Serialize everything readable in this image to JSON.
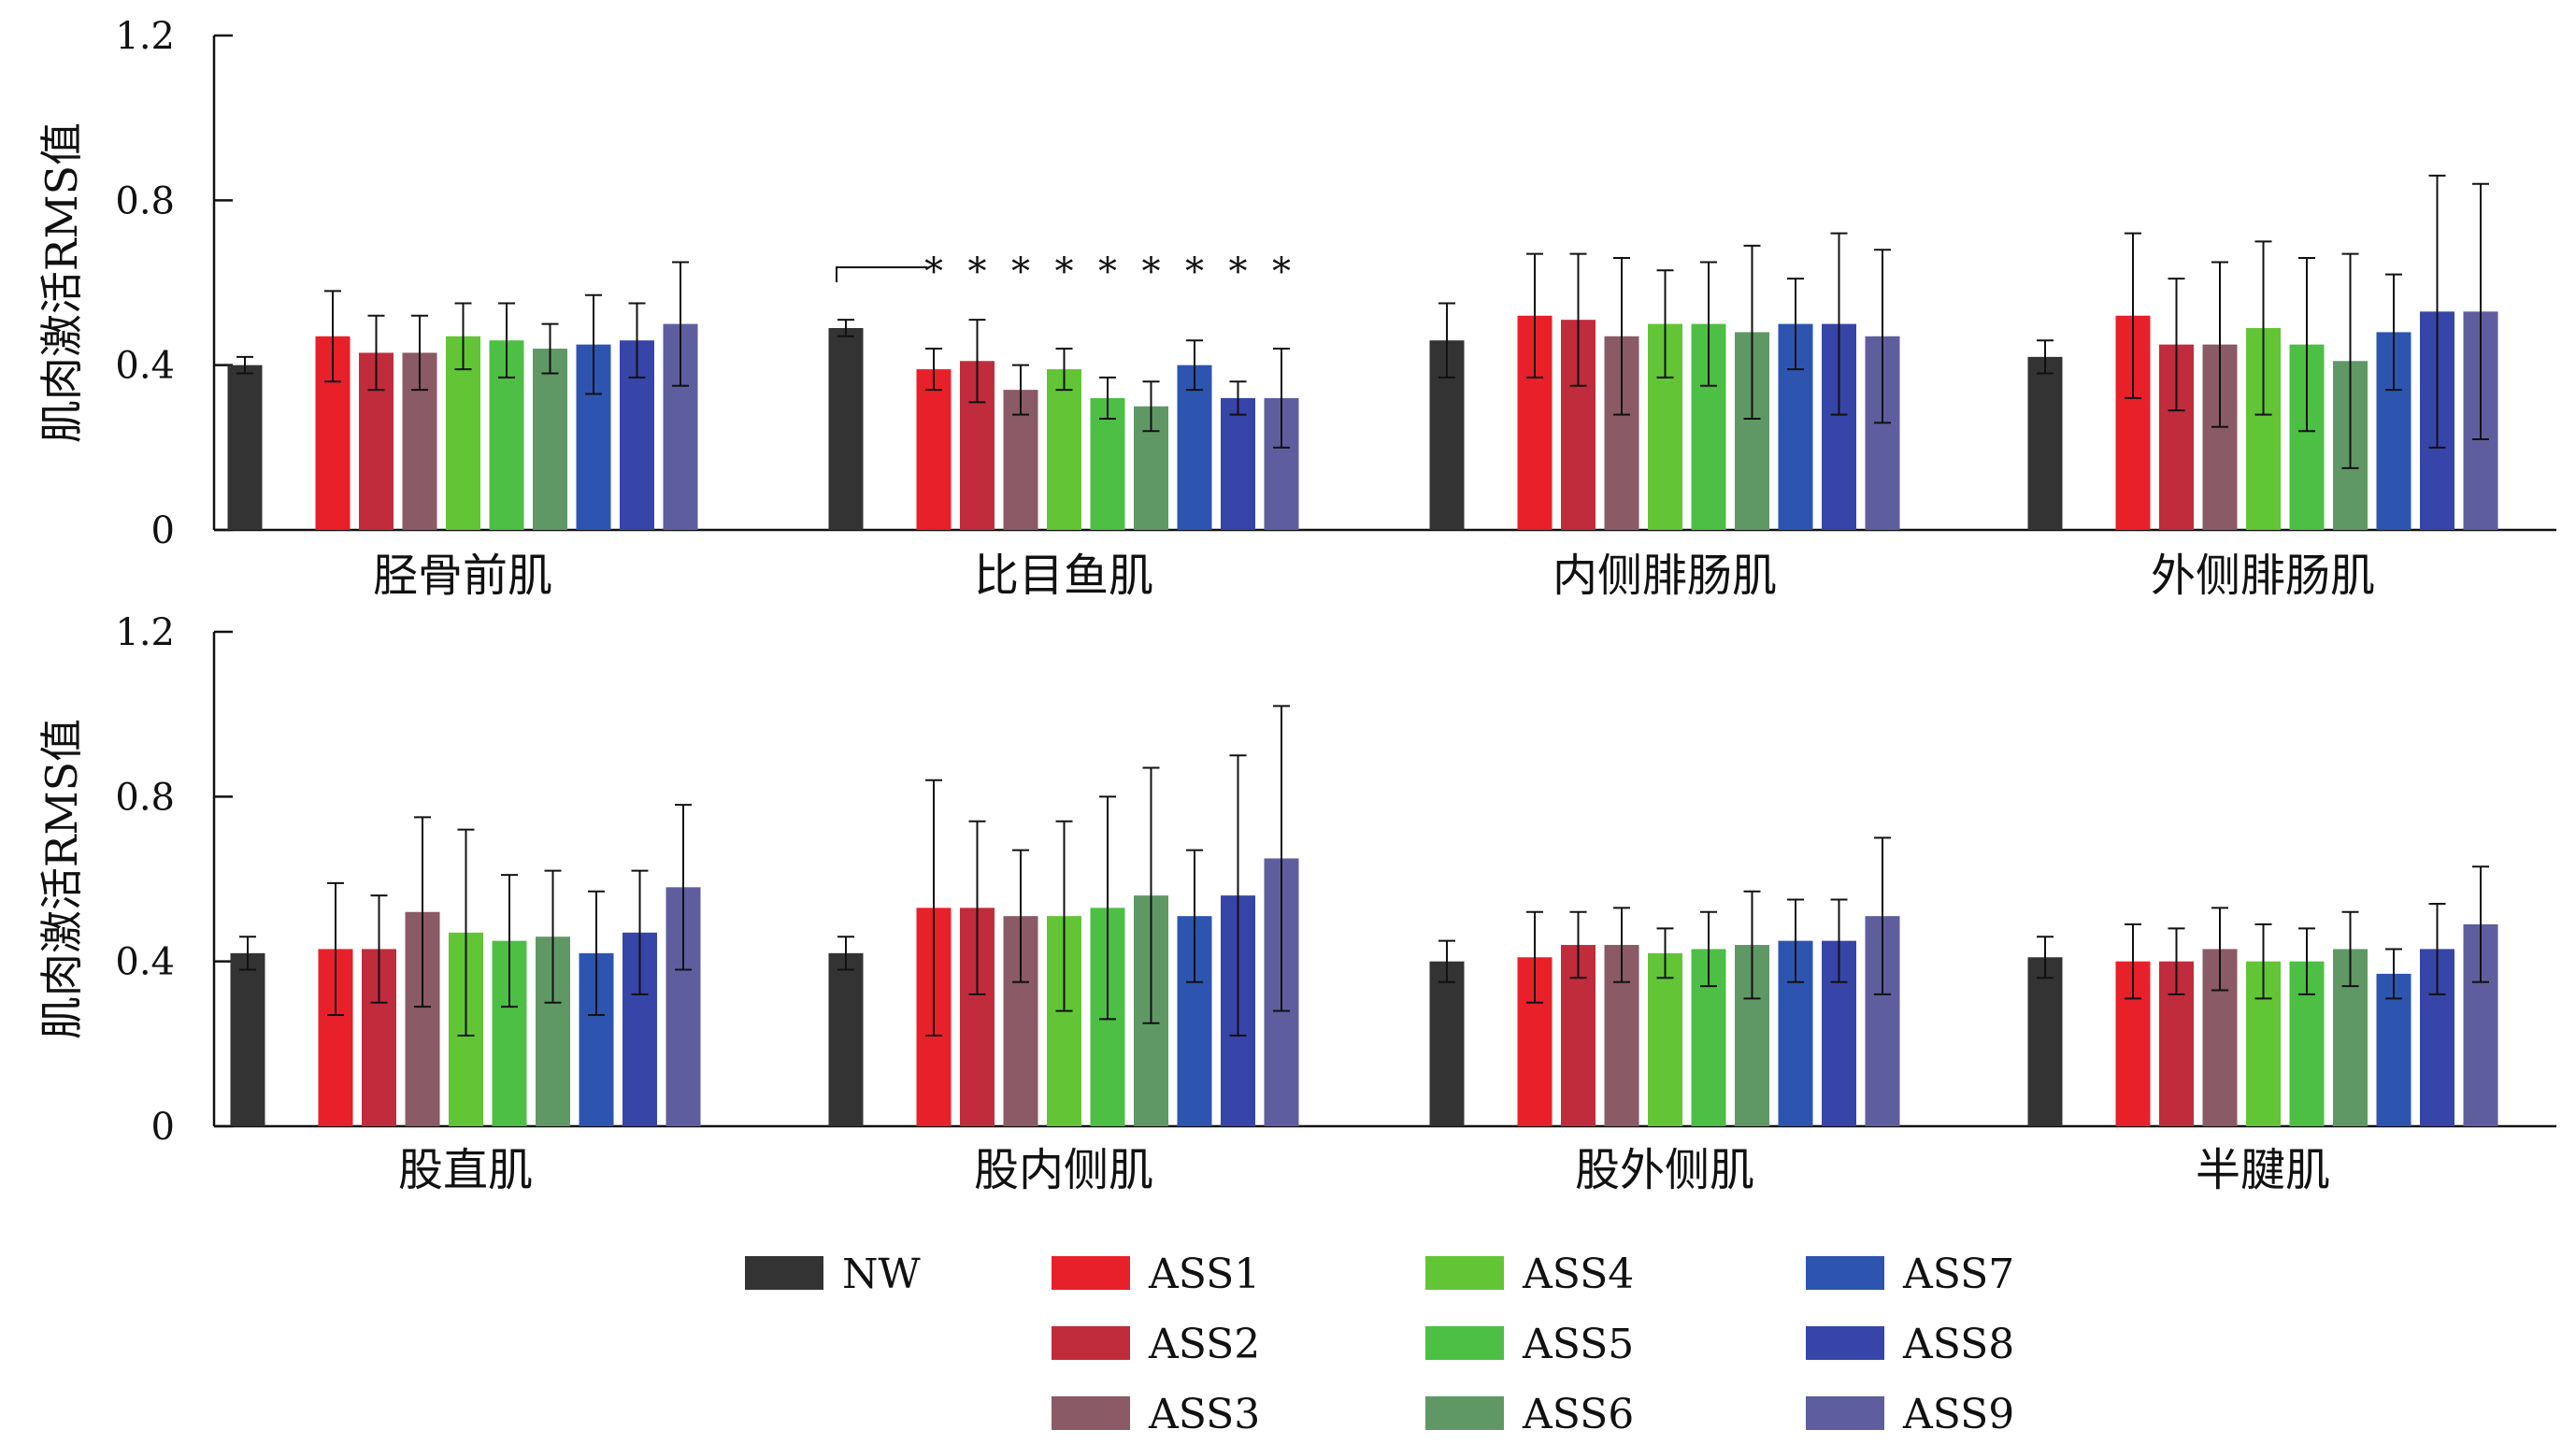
{
  "chart_data": [
    {
      "type": "bar",
      "ylabel": "肌肉激活RMS值",
      "ylim": [
        0,
        1.2
      ],
      "yticks": [
        "0",
        "0.4",
        "0.8",
        "1.2"
      ],
      "error_bars": true,
      "groups": [
        {
          "label": "胫骨前肌",
          "values": [
            0.4,
            0.47,
            0.43,
            0.43,
            0.47,
            0.46,
            0.44,
            0.45,
            0.46,
            0.5
          ],
          "errors": [
            0.02,
            0.11,
            0.09,
            0.09,
            0.08,
            0.09,
            0.06,
            0.12,
            0.09,
            0.15
          ]
        },
        {
          "label": "比目鱼肌",
          "values": [
            0.49,
            0.39,
            0.41,
            0.34,
            0.39,
            0.32,
            0.3,
            0.4,
            0.32,
            0.32
          ],
          "errors": [
            0.02,
            0.05,
            0.1,
            0.06,
            0.05,
            0.05,
            0.06,
            0.06,
            0.04,
            0.12
          ],
          "significance": [
            "*",
            "*",
            "*",
            "*",
            "*",
            "*",
            "*",
            "*",
            "*"
          ]
        },
        {
          "label": "内侧腓肠肌",
          "values": [
            0.46,
            0.52,
            0.51,
            0.47,
            0.5,
            0.5,
            0.48,
            0.5,
            0.5,
            0.47
          ],
          "errors": [
            0.09,
            0.15,
            0.16,
            0.19,
            0.13,
            0.15,
            0.21,
            0.11,
            0.22,
            0.21
          ]
        },
        {
          "label": "外侧腓肠肌",
          "values": [
            0.42,
            0.52,
            0.45,
            0.45,
            0.49,
            0.45,
            0.41,
            0.48,
            0.53,
            0.53
          ],
          "errors": [
            0.04,
            0.2,
            0.16,
            0.2,
            0.21,
            0.21,
            0.26,
            0.14,
            0.33,
            0.31
          ]
        }
      ]
    },
    {
      "type": "bar",
      "ylabel": "肌肉激活RMS值",
      "ylim": [
        0,
        1.2
      ],
      "yticks": [
        "0",
        "0.4",
        "0.8",
        "1.2"
      ],
      "error_bars": true,
      "groups": [
        {
          "label": "股直肌",
          "values": [
            0.42,
            0.43,
            0.43,
            0.52,
            0.47,
            0.45,
            0.46,
            0.42,
            0.47,
            0.58
          ],
          "errors": [
            0.04,
            0.16,
            0.13,
            0.23,
            0.25,
            0.16,
            0.16,
            0.15,
            0.15,
            0.2
          ]
        },
        {
          "label": "股内侧肌",
          "values": [
            0.42,
            0.53,
            0.53,
            0.51,
            0.51,
            0.53,
            0.56,
            0.51,
            0.56,
            0.65
          ],
          "errors": [
            0.04,
            0.31,
            0.21,
            0.16,
            0.23,
            0.27,
            0.31,
            0.16,
            0.34,
            0.37
          ]
        },
        {
          "label": "股外侧肌",
          "values": [
            0.4,
            0.41,
            0.44,
            0.44,
            0.42,
            0.43,
            0.44,
            0.45,
            0.45,
            0.51
          ],
          "errors": [
            0.05,
            0.11,
            0.08,
            0.09,
            0.06,
            0.09,
            0.13,
            0.1,
            0.1,
            0.19
          ]
        },
        {
          "label": "半腱肌",
          "values": [
            0.41,
            0.4,
            0.4,
            0.43,
            0.4,
            0.4,
            0.43,
            0.37,
            0.43,
            0.49
          ],
          "errors": [
            0.05,
            0.09,
            0.08,
            0.1,
            0.09,
            0.08,
            0.09,
            0.06,
            0.11,
            0.14
          ]
        }
      ]
    }
  ],
  "legend": [
    {
      "name": "NW",
      "color": "#333333"
    },
    {
      "name": "ASS1",
      "color": "#e8202a"
    },
    {
      "name": "ASS2",
      "color": "#c02c3c"
    },
    {
      "name": "ASS3",
      "color": "#8a5a66"
    },
    {
      "name": "ASS4",
      "color": "#62c535"
    },
    {
      "name": "ASS5",
      "color": "#4cbf44"
    },
    {
      "name": "ASS6",
      "color": "#5f9865"
    },
    {
      "name": "ASS7",
      "color": "#2d55b0"
    },
    {
      "name": "ASS8",
      "color": "#3745a8"
    },
    {
      "name": "ASS9",
      "color": "#5e5e9e"
    }
  ]
}
